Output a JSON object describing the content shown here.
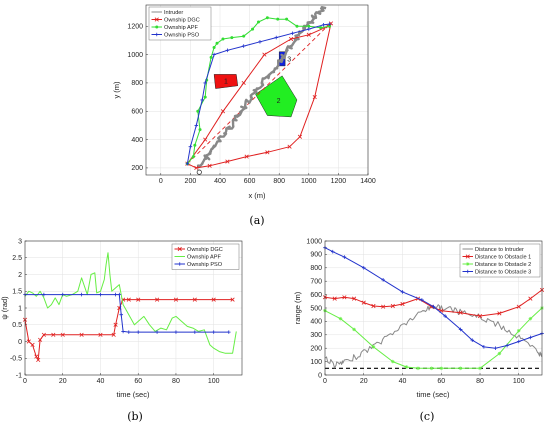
{
  "chart_data": [
    {
      "id": "a",
      "type": "line",
      "panel_label": "(a)",
      "xlabel": "x (m)",
      "ylabel": "y (m)",
      "xlim": [
        -100,
        1400
      ],
      "ylim": [
        150,
        1350
      ],
      "xticks": [
        0,
        200,
        400,
        600,
        800,
        1000,
        1200,
        1400
      ],
      "yticks": [
        200,
        400,
        600,
        800,
        1000,
        1200
      ],
      "grid": true,
      "legend_position": "top-left",
      "series": [
        {
          "name": "Intruder",
          "color": "#888888",
          "noisy": true,
          "x": [
            260,
            320,
            400,
            480,
            560,
            640,
            720,
            800,
            880,
            960,
            1040,
            1110
          ],
          "y": [
            200,
            290,
            400,
            510,
            620,
            730,
            840,
            950,
            1060,
            1170,
            1270,
            1340
          ]
        },
        {
          "name": "Ownship DGC",
          "color": "#e02020",
          "marker": "x",
          "x": [
            180,
            240,
            330,
            450,
            580,
            720,
            870,
            940,
            1040,
            1150,
            1130,
            1000,
            880,
            700,
            560,
            420,
            300,
            180
          ],
          "y": [
            230,
            200,
            215,
            245,
            280,
            310,
            350,
            420,
            700,
            1220,
            1200,
            1140,
            1110,
            1000,
            800,
            600,
            400,
            230
          ]
        },
        {
          "name": "Ownship APF",
          "color": "#33dd33",
          "marker": "dot",
          "x": [
            180,
            220,
            230,
            265,
            250,
            300,
            310,
            340,
            360,
            380,
            420,
            480,
            560,
            620,
            660,
            720,
            790,
            850,
            920,
            1000,
            1080,
            1140
          ],
          "y": [
            230,
            280,
            360,
            470,
            600,
            700,
            820,
            980,
            1050,
            1080,
            1110,
            1120,
            1130,
            1180,
            1230,
            1260,
            1250,
            1250,
            1200,
            1200,
            1190,
            1200
          ]
        },
        {
          "name": "Ownship PSO",
          "color": "#2233cc",
          "marker": "plus",
          "x": [
            180,
            200,
            240,
            280,
            300,
            360,
            450,
            560,
            670,
            780,
            890,
            1000,
            1100,
            1140
          ],
          "y": [
            230,
            350,
            500,
            680,
            800,
            1000,
            1030,
            1060,
            1090,
            1120,
            1150,
            1180,
            1210,
            1215
          ]
        }
      ],
      "reference_line": {
        "style": "dashed",
        "color": "#e02020",
        "x": [
          180,
          1140
        ],
        "y": [
          230,
          1215
        ]
      },
      "markers": [
        {
          "shape": "circle",
          "x": 260,
          "y": 170
        }
      ],
      "obstacles": [
        {
          "label": "1",
          "color": "#ee1111",
          "points": [
            [
              360,
              860
            ],
            [
              510,
              860
            ],
            [
              520,
              780
            ],
            [
              370,
              760
            ]
          ]
        },
        {
          "label": "2",
          "color": "#22ee22",
          "points": [
            [
              640,
              720
            ],
            [
              720,
              570
            ],
            [
              880,
              560
            ],
            [
              920,
              680
            ],
            [
              820,
              850
            ]
          ]
        },
        {
          "label": "3",
          "color": "#1122dd",
          "points": [
            [
              800,
              1020
            ],
            [
              840,
              1020
            ],
            [
              840,
              920
            ],
            [
              800,
              920
            ]
          ]
        }
      ]
    },
    {
      "id": "b",
      "type": "line",
      "panel_label": "(b)",
      "xlabel": "time (sec)",
      "ylabel": "ψ (rad)",
      "xlim": [
        0,
        115
      ],
      "ylim": [
        -1,
        3
      ],
      "xticks": [
        0,
        20,
        40,
        60,
        80,
        100
      ],
      "yticks": [
        -1,
        -0.5,
        0,
        0.5,
        1,
        1.5,
        2,
        2.5,
        3
      ],
      "grid": true,
      "legend_position": "top-right",
      "series": [
        {
          "name": "Ownship DGC",
          "color": "#e02020",
          "marker": "x",
          "x": [
            0,
            2,
            4,
            6,
            7,
            8,
            10,
            15,
            20,
            30,
            40,
            47,
            48,
            50,
            52,
            55,
            60,
            70,
            80,
            90,
            100,
            110
          ],
          "y": [
            0.65,
            0.0,
            -0.1,
            -0.45,
            -0.55,
            0.05,
            0.2,
            0.2,
            0.2,
            0.2,
            0.2,
            0.2,
            0.5,
            1.0,
            1.25,
            1.25,
            1.25,
            1.25,
            1.25,
            1.25,
            1.25,
            1.25
          ]
        },
        {
          "name": "Ownship APF",
          "color": "#66ee44",
          "x": [
            0,
            2,
            4,
            6,
            8,
            10,
            12,
            14,
            16,
            18,
            20,
            22,
            25,
            28,
            30,
            33,
            35,
            37,
            38,
            40,
            42,
            43,
            44,
            45,
            46,
            48,
            50,
            52,
            55,
            58,
            60,
            63,
            66,
            69,
            72,
            75,
            78,
            80,
            83,
            86,
            89,
            92,
            95,
            98,
            100,
            103,
            106,
            110,
            112
          ],
          "y": [
            1.35,
            1.5,
            1.45,
            1.35,
            1.5,
            1.3,
            1.0,
            1.1,
            1.3,
            1.1,
            1.4,
            1.35,
            1.4,
            1.5,
            1.9,
            1.4,
            2.0,
            2.05,
            1.45,
            1.5,
            1.85,
            2.3,
            2.65,
            2.0,
            1.5,
            1.6,
            1.7,
            1.1,
            0.8,
            0.5,
            0.6,
            0.75,
            0.5,
            0.3,
            0.4,
            0.35,
            0.7,
            0.75,
            0.6,
            0.45,
            0.4,
            0.3,
            0.35,
            -0.1,
            -0.2,
            -0.3,
            -0.35,
            -0.35,
            0.3
          ]
        },
        {
          "name": "Ownship PSO",
          "color": "#2233cc",
          "marker": "plus",
          "x": [
            0,
            10,
            20,
            30,
            40,
            48,
            50,
            51,
            52,
            55,
            60,
            70,
            80,
            90,
            100,
            108
          ],
          "y": [
            1.4,
            1.4,
            1.4,
            1.4,
            1.4,
            1.4,
            1.4,
            0.8,
            0.3,
            0.28,
            0.28,
            0.28,
            0.28,
            0.28,
            0.28,
            0.28
          ]
        }
      ]
    },
    {
      "id": "c",
      "type": "line",
      "panel_label": "(c)",
      "xlabel": "time (sec)",
      "ylabel": "range (m)",
      "xlim": [
        0,
        112
      ],
      "ylim": [
        0,
        1000
      ],
      "xticks": [
        0,
        20,
        40,
        60,
        80,
        100
      ],
      "yticks": [
        0,
        100,
        200,
        300,
        400,
        500,
        600,
        700,
        800,
        900,
        1000
      ],
      "grid": true,
      "legend_position": "top-right",
      "series": [
        {
          "name": "Distance to Intruder",
          "color": "#888888",
          "noisy": true,
          "x": [
            0,
            5,
            10,
            20,
            30,
            40,
            50,
            55,
            60,
            70,
            80,
            90,
            100,
            110,
            112
          ],
          "y": [
            130,
            75,
            90,
            170,
            260,
            370,
            470,
            510,
            505,
            470,
            430,
            370,
            280,
            170,
            140
          ]
        },
        {
          "name": "Distance to Obstacle 1",
          "color": "#e02020",
          "marker": "x",
          "x": [
            0,
            5,
            10,
            15,
            20,
            25,
            30,
            35,
            40,
            48,
            55,
            60,
            70,
            80,
            90,
            100,
            106,
            112
          ],
          "y": [
            580,
            570,
            580,
            570,
            540,
            515,
            510,
            515,
            530,
            570,
            510,
            480,
            465,
            440,
            460,
            510,
            570,
            635
          ]
        },
        {
          "name": "Distance to Obstacle 2",
          "color": "#66ee44",
          "marker": "star",
          "x": [
            0,
            8,
            15,
            25,
            35,
            42,
            48,
            55,
            60,
            70,
            80,
            90,
            100,
            106,
            112
          ],
          "y": [
            480,
            420,
            340,
            210,
            100,
            60,
            50,
            50,
            50,
            50,
            50,
            160,
            330,
            420,
            500
          ]
        },
        {
          "name": "Distance to Obstacle 3",
          "color": "#2233cc",
          "marker": "plus",
          "x": [
            0,
            4,
            10,
            20,
            30,
            40,
            50,
            56,
            62,
            70,
            76,
            82,
            88,
            94,
            100,
            106,
            112
          ],
          "y": [
            950,
            920,
            880,
            800,
            710,
            620,
            560,
            510,
            440,
            340,
            260,
            210,
            200,
            220,
            250,
            280,
            310
          ]
        }
      ],
      "reference_line": {
        "style": "dashed",
        "color": "#000000",
        "y": 50
      }
    }
  ]
}
